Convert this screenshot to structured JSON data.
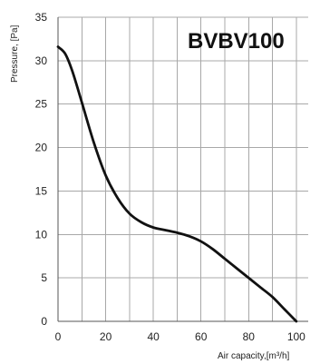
{
  "chart_data": {
    "type": "line",
    "title": "BVBV100",
    "xlabel": "Air capacity,[m³/h]",
    "ylabel": "Pressure, [Pa]",
    "xlim": [
      0,
      105
    ],
    "ylim": [
      0,
      35
    ],
    "x_ticks": [
      0,
      20,
      40,
      60,
      80,
      100
    ],
    "y_ticks": [
      0,
      5,
      10,
      15,
      20,
      25,
      30,
      35
    ],
    "grid": true,
    "series": [
      {
        "values": [
          {
            "x": 0,
            "y": 31.6
          },
          {
            "x": 3,
            "y": 30.8
          },
          {
            "x": 6,
            "y": 28.8
          },
          {
            "x": 10,
            "y": 25.2
          },
          {
            "x": 15,
            "y": 20.6
          },
          {
            "x": 20,
            "y": 16.8
          },
          {
            "x": 25,
            "y": 14.2
          },
          {
            "x": 30,
            "y": 12.4
          },
          {
            "x": 35,
            "y": 11.4
          },
          {
            "x": 40,
            "y": 10.8
          },
          {
            "x": 45,
            "y": 10.5
          },
          {
            "x": 50,
            "y": 10.2
          },
          {
            "x": 55,
            "y": 9.8
          },
          {
            "x": 60,
            "y": 9.2
          },
          {
            "x": 65,
            "y": 8.3
          },
          {
            "x": 70,
            "y": 7.2
          },
          {
            "x": 75,
            "y": 6.1
          },
          {
            "x": 80,
            "y": 5.0
          },
          {
            "x": 85,
            "y": 3.9
          },
          {
            "x": 90,
            "y": 2.8
          },
          {
            "x": 95,
            "y": 1.4
          },
          {
            "x": 100,
            "y": 0
          }
        ]
      }
    ]
  }
}
